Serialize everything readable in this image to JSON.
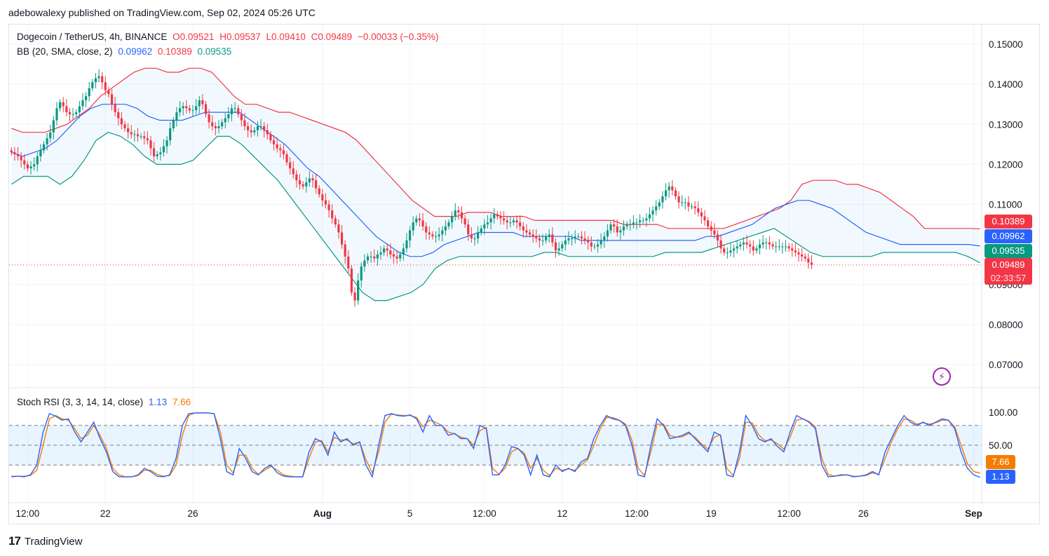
{
  "header": {
    "published": "adebowalexy published on TradingView.com, Sep 02, 2024 05:26 UTC"
  },
  "legend": {
    "symbol": "Dogecoin / TetherUS, 4h, BINANCE",
    "open": "O0.09521",
    "high": "H0.09537",
    "low": "L0.09410",
    "close": "C0.09489",
    "change": "−0.00033 (−0.35%)",
    "bb_label": "BB (20, SMA, close, 2)",
    "bb_basis": "0.09962",
    "bb_upper": "0.10389",
    "bb_lower": "0.09535",
    "stoch_label": "Stoch RSI (3, 3, 14, 14, close)",
    "stoch_k": "1.13",
    "stoch_d": "7.66"
  },
  "price_tags": {
    "upper": "0.10389",
    "basis": "0.09962",
    "lower": "0.09535",
    "last": "0.09489",
    "countdown": "02:33:57"
  },
  "stoch_tags": {
    "d": "7.66",
    "k": "1.13"
  },
  "footer": {
    "brand": "TradingView"
  },
  "colors": {
    "up": "#089981",
    "down": "#f23645",
    "bb_upper": "#f23645",
    "bb_basis": "#2962ff",
    "bb_lower": "#089981",
    "stoch_k": "#2962ff",
    "stoch_d": "#f57c00"
  },
  "chart_data": [
    {
      "type": "candlestick",
      "title": "Dogecoin / TetherUS, 4h, BINANCE",
      "y_ticks": [
        "0.15000",
        "0.14000",
        "0.13000",
        "0.12000",
        "0.11000",
        "0.09000",
        "0.08000",
        "0.07000"
      ],
      "y_tick_values": [
        0.15,
        0.14,
        0.13,
        0.12,
        0.11,
        0.09,
        0.08,
        0.07
      ],
      "ylim": [
        0.065,
        0.152
      ],
      "x_ticks": [
        "12:00",
        "22",
        "26",
        "Aug",
        "5",
        "12:00",
        "12",
        "12:00",
        "19",
        "12:00",
        "26",
        "Sep"
      ],
      "x_tick_index": [
        5,
        29,
        56,
        96,
        123,
        146,
        170,
        193,
        216,
        240,
        263,
        297
      ],
      "last_price": 0.09489,
      "close": [
        0.123,
        0.1225,
        0.122,
        0.121,
        0.12,
        0.119,
        0.1195,
        0.12,
        0.122,
        0.1235,
        0.125,
        0.1265,
        0.128,
        0.131,
        0.134,
        0.1355,
        0.1345,
        0.133,
        0.1325,
        0.1325,
        0.133,
        0.1345,
        0.136,
        0.137,
        0.139,
        0.1405,
        0.1415,
        0.142,
        0.1405,
        0.1385,
        0.1375,
        0.135,
        0.133,
        0.1315,
        0.13,
        0.129,
        0.128,
        0.1275,
        0.1275,
        0.127,
        0.127,
        0.1265,
        0.126,
        0.124,
        0.122,
        0.1225,
        0.123,
        0.1245,
        0.126,
        0.129,
        0.131,
        0.133,
        0.134,
        0.1345,
        0.134,
        0.1335,
        0.1335,
        0.1345,
        0.136,
        0.135,
        0.1325,
        0.1305,
        0.1295,
        0.129,
        0.1295,
        0.1305,
        0.1315,
        0.1325,
        0.134,
        0.134,
        0.1325,
        0.131,
        0.1295,
        0.1285,
        0.128,
        0.1285,
        0.1295,
        0.1295,
        0.1285,
        0.1275,
        0.126,
        0.125,
        0.124,
        0.1235,
        0.1225,
        0.1205,
        0.119,
        0.1175,
        0.116,
        0.115,
        0.1145,
        0.1155,
        0.1165,
        0.116,
        0.114,
        0.1125,
        0.111,
        0.11,
        0.1085,
        0.1065,
        0.105,
        0.103,
        0.1,
        0.097,
        0.094,
        0.088,
        0.086,
        0.091,
        0.0945,
        0.096,
        0.097,
        0.097,
        0.0965,
        0.0975,
        0.098,
        0.099,
        0.0985,
        0.0975,
        0.097,
        0.0965,
        0.0975,
        0.099,
        0.101,
        0.1035,
        0.1055,
        0.1065,
        0.106,
        0.1045,
        0.103,
        0.1025,
        0.102,
        0.102,
        0.1025,
        0.1035,
        0.1045,
        0.1055,
        0.107,
        0.1085,
        0.108,
        0.1065,
        0.105,
        0.1025,
        0.1015,
        0.1015,
        0.103,
        0.104,
        0.105,
        0.1055,
        0.1065,
        0.1075,
        0.107,
        0.1065,
        0.106,
        0.1055,
        0.1055,
        0.106,
        0.1055,
        0.1045,
        0.1035,
        0.103,
        0.1025,
        0.102,
        0.1015,
        0.101,
        0.101,
        0.102,
        0.1025,
        0.1005,
        0.0985,
        0.099,
        0.1,
        0.101,
        0.1015,
        0.1015,
        0.102,
        0.102,
        0.1015,
        0.101,
        0.1005,
        0.0995,
        0.0995,
        0.1,
        0.101,
        0.102,
        0.1035,
        0.105,
        0.1045,
        0.103,
        0.1035,
        0.1045,
        0.105,
        0.105,
        0.1055,
        0.1055,
        0.106,
        0.106,
        0.1065,
        0.1075,
        0.1085,
        0.1095,
        0.1105,
        0.112,
        0.1135,
        0.1145,
        0.1135,
        0.112,
        0.1105,
        0.1105,
        0.1105,
        0.1095,
        0.1095,
        0.109,
        0.108,
        0.107,
        0.106,
        0.1045,
        0.1035,
        0.1025,
        0.101,
        0.099,
        0.098,
        0.098,
        0.0985,
        0.099,
        0.0995,
        0.1,
        0.1005,
        0.1,
        0.0995,
        0.0985,
        0.099,
        0.1,
        0.1005,
        0.1005,
        0.1,
        0.0995,
        0.0995,
        0.0995,
        0.0995,
        0.0995,
        0.099,
        0.0985,
        0.098,
        0.0975,
        0.097,
        0.0965,
        0.0955,
        0.0949
      ],
      "bb_upper": [
        0.129,
        0.128,
        0.128,
        0.128,
        0.129,
        0.13,
        0.132,
        0.134,
        0.137,
        0.139,
        0.141,
        0.143,
        0.144,
        0.144,
        0.143,
        0.143,
        0.144,
        0.144,
        0.143,
        0.14,
        0.137,
        0.135,
        0.135,
        0.134,
        0.133,
        0.133,
        0.132,
        0.131,
        0.13,
        0.129,
        0.128,
        0.126,
        0.123,
        0.12,
        0.117,
        0.114,
        0.111,
        0.109,
        0.107,
        0.107,
        0.107,
        0.108,
        0.108,
        0.108,
        0.107,
        0.107,
        0.107,
        0.106,
        0.106,
        0.106,
        0.106,
        0.106,
        0.106,
        0.106,
        0.106,
        0.105,
        0.105,
        0.105,
        0.105,
        0.104,
        0.104,
        0.104,
        0.104,
        0.104,
        0.104,
        0.105,
        0.106,
        0.107,
        0.108,
        0.109,
        0.111,
        0.115,
        0.116,
        0.116,
        0.116,
        0.115,
        0.115,
        0.114,
        0.113,
        0.111,
        0.109,
        0.107,
        0.104,
        0.104,
        0.104,
        0.104,
        0.104,
        0.1039
      ],
      "bb_basis": [
        0.123,
        0.122,
        0.123,
        0.124,
        0.126,
        0.129,
        0.132,
        0.134,
        0.135,
        0.135,
        0.135,
        0.134,
        0.132,
        0.131,
        0.131,
        0.131,
        0.132,
        0.133,
        0.133,
        0.133,
        0.133,
        0.131,
        0.129,
        0.127,
        0.125,
        0.122,
        0.119,
        0.117,
        0.114,
        0.111,
        0.108,
        0.105,
        0.102,
        0.1,
        0.098,
        0.097,
        0.097,
        0.098,
        0.1,
        0.101,
        0.102,
        0.103,
        0.103,
        0.103,
        0.103,
        0.102,
        0.102,
        0.102,
        0.102,
        0.102,
        0.101,
        0.101,
        0.101,
        0.101,
        0.101,
        0.101,
        0.101,
        0.101,
        0.101,
        0.101,
        0.101,
        0.102,
        0.102,
        0.103,
        0.104,
        0.105,
        0.107,
        0.109,
        0.11,
        0.111,
        0.111,
        0.11,
        0.109,
        0.107,
        0.105,
        0.103,
        0.102,
        0.101,
        0.1,
        0.1,
        0.1,
        0.1,
        0.1,
        0.1,
        0.1,
        0.0996
      ],
      "bb_lower": [
        0.115,
        0.117,
        0.117,
        0.117,
        0.115,
        0.117,
        0.121,
        0.126,
        0.128,
        0.127,
        0.125,
        0.122,
        0.12,
        0.12,
        0.12,
        0.121,
        0.124,
        0.127,
        0.127,
        0.125,
        0.122,
        0.119,
        0.116,
        0.112,
        0.108,
        0.104,
        0.1,
        0.096,
        0.092,
        0.088,
        0.086,
        0.086,
        0.087,
        0.088,
        0.09,
        0.094,
        0.096,
        0.097,
        0.097,
        0.097,
        0.097,
        0.097,
        0.097,
        0.097,
        0.098,
        0.098,
        0.097,
        0.097,
        0.097,
        0.097,
        0.097,
        0.097,
        0.097,
        0.097,
        0.098,
        0.098,
        0.098,
        0.098,
        0.099,
        0.1,
        0.101,
        0.102,
        0.103,
        0.104,
        0.102,
        0.1,
        0.098,
        0.097,
        0.097,
        0.097,
        0.097,
        0.097,
        0.098,
        0.098,
        0.098,
        0.098,
        0.098,
        0.098,
        0.098,
        0.097,
        0.0954
      ]
    },
    {
      "type": "line",
      "title": "Stoch RSI (3, 3, 14, 14, close)",
      "y_ticks": [
        "100.00",
        "50.00"
      ],
      "y_tick_values": [
        100,
        50
      ],
      "ylim": [
        -5,
        105
      ],
      "bands": {
        "upper": 80,
        "middle": 50,
        "lower": 20
      },
      "series": [
        {
          "name": "K",
          "values": [
            2,
            3,
            2,
            5,
            20,
            70,
            98,
            94,
            88,
            90,
            70,
            55,
            70,
            85,
            60,
            40,
            10,
            2,
            2,
            2,
            5,
            15,
            10,
            3,
            2,
            5,
            30,
            80,
            98,
            99,
            99,
            99,
            98,
            60,
            10,
            5,
            45,
            30,
            10,
            5,
            15,
            20,
            8,
            3,
            2,
            2,
            2,
            40,
            60,
            55,
            35,
            70,
            55,
            60,
            50,
            55,
            20,
            2,
            50,
            95,
            98,
            95,
            94,
            96,
            90,
            70,
            95,
            80,
            80,
            65,
            68,
            60,
            60,
            45,
            80,
            75,
            5,
            5,
            20,
            48,
            45,
            35,
            5,
            35,
            5,
            2,
            20,
            10,
            15,
            10,
            25,
            30,
            60,
            80,
            95,
            90,
            88,
            80,
            50,
            5,
            2,
            50,
            90,
            80,
            60,
            62,
            65,
            70,
            60,
            50,
            40,
            70,
            65,
            5,
            2,
            40,
            95,
            80,
            60,
            55,
            60,
            48,
            40,
            70,
            95,
            90,
            85,
            75,
            20,
            2,
            3,
            5,
            5,
            2,
            3,
            5,
            10,
            5,
            40,
            60,
            80,
            95,
            85,
            80,
            85,
            80,
            85,
            90,
            88,
            75,
            40,
            15,
            5,
            1.13
          ]
        },
        {
          "name": "D",
          "values": [
            3,
            3,
            3,
            4,
            12,
            50,
            90,
            95,
            90,
            88,
            75,
            60,
            65,
            80,
            65,
            45,
            15,
            5,
            2,
            2,
            4,
            12,
            12,
            6,
            3,
            4,
            20,
            65,
            95,
            99,
            99,
            99,
            98,
            70,
            20,
            8,
            35,
            35,
            15,
            6,
            12,
            18,
            12,
            5,
            3,
            2,
            2,
            30,
            55,
            57,
            40,
            62,
            58,
            58,
            52,
            55,
            28,
            8,
            40,
            85,
            97,
            96,
            95,
            95,
            92,
            78,
            88,
            85,
            80,
            70,
            67,
            62,
            60,
            50,
            72,
            77,
            15,
            6,
            15,
            40,
            45,
            38,
            15,
            30,
            12,
            4,
            15,
            12,
            14,
            12,
            20,
            28,
            50,
            75,
            92,
            92,
            88,
            82,
            58,
            15,
            4,
            40,
            82,
            82,
            65,
            62,
            63,
            68,
            62,
            52,
            44,
            62,
            66,
            15,
            4,
            30,
            85,
            84,
            66,
            57,
            58,
            52,
            44,
            62,
            88,
            90,
            86,
            78,
            30,
            6,
            3,
            4,
            5,
            3,
            3,
            4,
            8,
            6,
            30,
            55,
            75,
            90,
            88,
            82,
            84,
            82,
            84,
            88,
            88,
            78,
            50,
            22,
            10,
            7.66
          ]
        }
      ]
    }
  ]
}
